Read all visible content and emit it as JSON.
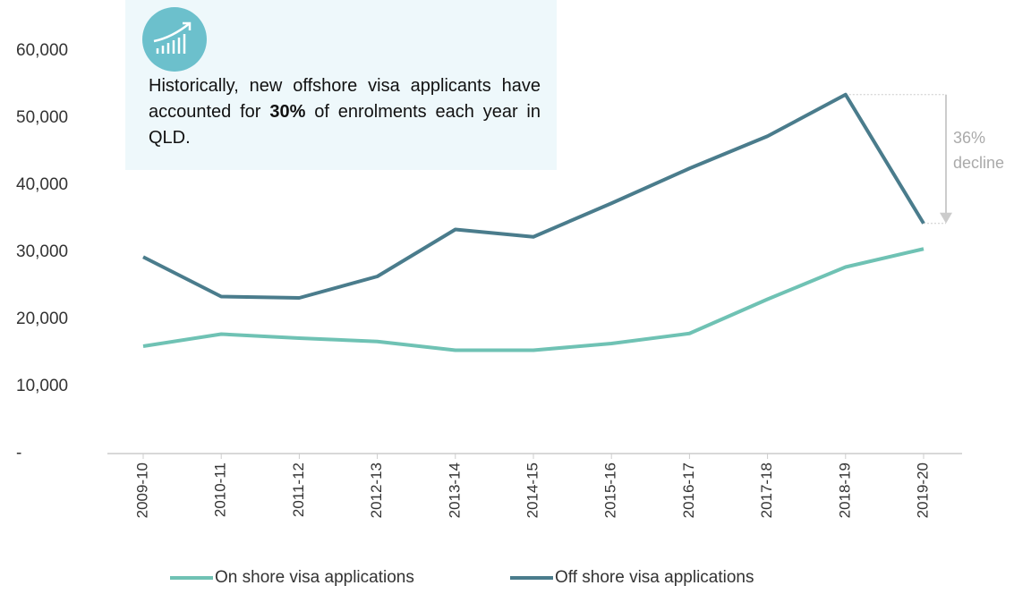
{
  "chart_data": {
    "type": "line",
    "categories": [
      "2009-10",
      "2010-11",
      "2011-12",
      "2012-13",
      "2013-14",
      "2014-15",
      "2015-16",
      "2016-17",
      "2017-18",
      "2018-19",
      "2019-20"
    ],
    "series": [
      {
        "name": "On shore visa applications",
        "color": "#6fc2b4",
        "values": [
          16000,
          17800,
          17200,
          16700,
          15400,
          15400,
          16400,
          17900,
          23000,
          27800,
          30500
        ]
      },
      {
        "name": "Off shore visa applications",
        "color": "#4a7c8c",
        "values": [
          29300,
          23400,
          23200,
          26400,
          33400,
          32300,
          37300,
          42500,
          47300,
          53500,
          34300
        ]
      }
    ],
    "ylim": [
      0,
      60000
    ],
    "yticks": [
      {
        "value": 0,
        "label": "-"
      },
      {
        "value": 10000,
        "label": "10,000"
      },
      {
        "value": 20000,
        "label": "20,000"
      },
      {
        "value": 30000,
        "label": "30,000"
      },
      {
        "value": 40000,
        "label": "40,000"
      },
      {
        "value": 50000,
        "label": "50,000"
      },
      {
        "value": 60000,
        "label": "60,000"
      }
    ],
    "legend": "bottom",
    "annotation": {
      "before": "Historically, new offshore visa applicants have accounted for",
      "bold": "30%",
      "after": "of enrolments each year in QLD."
    },
    "decline": "36% decline"
  }
}
